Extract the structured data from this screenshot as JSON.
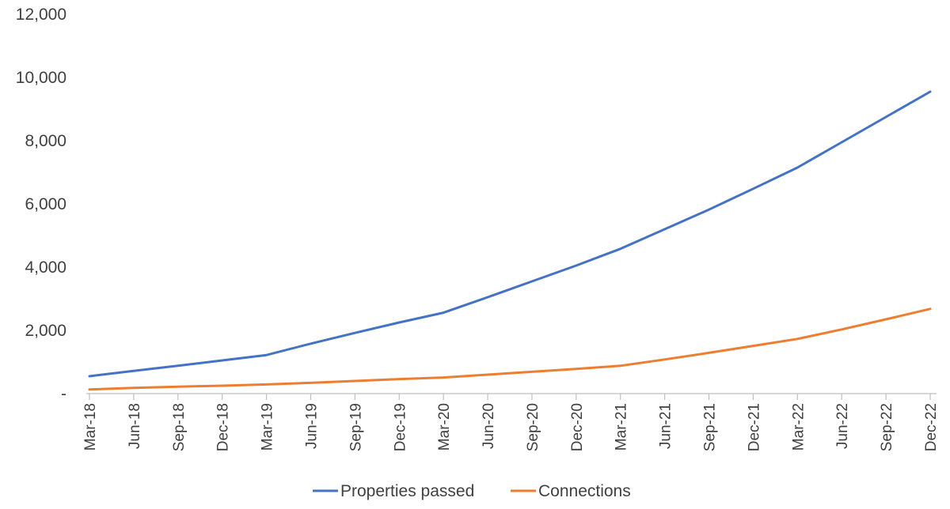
{
  "chart_data": {
    "type": "line",
    "categories": [
      "Mar-18",
      "Jun-18",
      "Sep-18",
      "Dec-18",
      "Mar-19",
      "Jun-19",
      "Sep-19",
      "Dec-19",
      "Mar-20",
      "Jun-20",
      "Sep-20",
      "Dec-20",
      "Mar-21",
      "Jun-21",
      "Sep-21",
      "Dec-21",
      "Mar-22",
      "Jun-22",
      "Sep-22",
      "Dec-22"
    ],
    "series": [
      {
        "name": "Properties passed",
        "color": "#4472C4",
        "values": [
          550,
          720,
          880,
          1050,
          1220,
          1580,
          1920,
          2250,
          2560,
          3050,
          3550,
          4050,
          4580,
          5200,
          5820,
          6480,
          7150,
          7950,
          8750,
          9550
        ]
      },
      {
        "name": "Connections",
        "color": "#ED7D31",
        "values": [
          130,
          180,
          220,
          250,
          290,
          340,
          400,
          460,
          510,
          600,
          690,
          780,
          880,
          1080,
          1290,
          1510,
          1730,
          2030,
          2350,
          2680
        ]
      }
    ],
    "y_ticks": [
      "-",
      "2,000",
      "4,000",
      "6,000",
      "8,000",
      "10,000",
      "12,000"
    ],
    "y_tick_values": [
      0,
      2000,
      4000,
      6000,
      8000,
      10000,
      12000
    ],
    "ylim": [
      0,
      12000
    ],
    "grid": false,
    "legend_position": "bottom-center"
  }
}
